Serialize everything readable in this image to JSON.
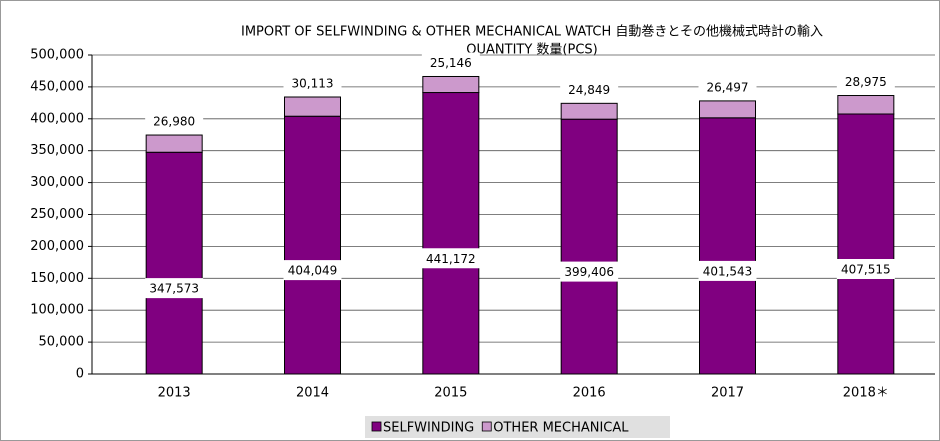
{
  "chart_data": {
    "type": "stacked_bar",
    "title": "IMPORT OF SELFWINDING & OTHER MECHANICAL WATCH  自動巻きとその他機械式時計の輸入",
    "subtitle": "QUANTITY  数量(PCS)",
    "categories": [
      "2013",
      "2014",
      "2015",
      "2016",
      "2017",
      "2018＊"
    ],
    "series": [
      {
        "name": "SELFWINDING",
        "color": "#800080",
        "values": [
          347573,
          404049,
          441172,
          399406,
          401543,
          407515
        ],
        "value_labels": [
          "347,573",
          "404,049",
          "441,172",
          "399,406",
          "401,543",
          "407,515"
        ]
      },
      {
        "name": "OTHER MECHANICAL",
        "color": "#cc99cc",
        "values": [
          26980,
          30113,
          25146,
          24849,
          26497,
          28975
        ],
        "value_labels": [
          "26,980",
          "30,113",
          "25,146",
          "24,849",
          "26,497",
          "28,975"
        ]
      }
    ],
    "ylim": [
      0,
      500000
    ],
    "yticks": [
      0,
      {
        "value": 50000,
        "label": "50,000"
      },
      {
        "value": 100000,
        "label": "100,000"
      },
      {
        "value": 150000,
        "label": "150,000"
      },
      {
        "value": 200000,
        "label": "200,000"
      },
      {
        "value": 250000,
        "label": "250,000"
      },
      {
        "value": 300000,
        "label": "300,000"
      },
      {
        "value": 350000,
        "label": "350,000"
      },
      {
        "value": 400000,
        "label": "400,000"
      },
      {
        "value": 450000,
        "label": "450,000"
      },
      {
        "value": 500000,
        "label": "500,000"
      }
    ],
    "grid": true,
    "legend": "bottom"
  }
}
